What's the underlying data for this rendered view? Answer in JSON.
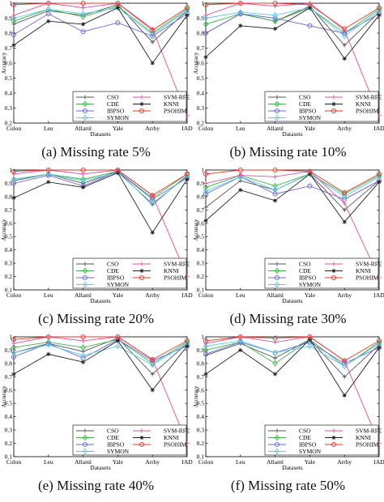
{
  "chart_data": [
    {
      "type": "line",
      "caption": "(a) Missing rate 5%",
      "categories": [
        "Colon",
        "Leu",
        "Allaml",
        "Yale",
        "Arrhy",
        "IAD"
      ],
      "xlabel": "Datasets",
      "ylabel": "Accuracy",
      "ylim": [
        0.2,
        1
      ],
      "yticks": [
        0.2,
        0.3,
        0.4,
        0.5,
        0.6,
        0.7,
        0.8,
        0.9,
        1
      ],
      "legend_position": "lower-left",
      "series": [
        {
          "name": "CSO",
          "color": "#555555",
          "marker": "plus",
          "values": [
            0.86,
            0.95,
            0.92,
            0.99,
            0.74,
            0.95
          ]
        },
        {
          "name": "CDE",
          "color": "#3cb44b",
          "marker": "diamond",
          "values": [
            0.88,
            0.96,
            0.91,
            0.98,
            0.8,
            0.96
          ]
        },
        {
          "name": "IBPSO",
          "color": "#6a6ad8",
          "marker": "circle",
          "values": [
            0.79,
            0.93,
            0.81,
            0.87,
            0.78,
            0.93
          ]
        },
        {
          "name": "SYMON",
          "color": "#5bc8e8",
          "marker": "diamond",
          "values": [
            0.9,
            0.96,
            0.93,
            0.97,
            0.79,
            0.95
          ]
        },
        {
          "name": "SVM-RFE",
          "color": "#e0509c",
          "marker": "plus",
          "values": [
            0.92,
            1.0,
            0.97,
            1.0,
            0.83,
            0.25
          ]
        },
        {
          "name": "KNNI",
          "color": "#222222",
          "marker": "star",
          "values": [
            0.72,
            0.88,
            0.86,
            0.97,
            0.6,
            0.92
          ]
        },
        {
          "name": "PSOHIM",
          "color": "#e03a2b",
          "marker": "circle",
          "values": [
            0.99,
            1.0,
            1.0,
            1.0,
            0.82,
            0.97
          ]
        }
      ]
    },
    {
      "type": "line",
      "caption": "(b) Missing rate 10%",
      "categories": [
        "Colon",
        "Leu",
        "Allaml",
        "Yale",
        "Arrhy",
        "IAD"
      ],
      "xlabel": "Datasets",
      "ylabel": "Accuracy",
      "ylim": [
        0.2,
        1
      ],
      "yticks": [
        0.2,
        0.3,
        0.4,
        0.5,
        0.6,
        0.7,
        0.8,
        0.9,
        1
      ],
      "legend_position": "lower-left",
      "series": [
        {
          "name": "CSO",
          "color": "#555555",
          "marker": "plus",
          "values": [
            0.8,
            0.93,
            0.88,
            0.98,
            0.72,
            0.94
          ]
        },
        {
          "name": "CDE",
          "color": "#3cb44b",
          "marker": "diamond",
          "values": [
            0.86,
            0.93,
            0.88,
            0.97,
            0.8,
            0.96
          ]
        },
        {
          "name": "IBPSO",
          "color": "#6a6ad8",
          "marker": "circle",
          "values": [
            0.8,
            0.93,
            0.9,
            0.85,
            0.8,
            0.93
          ]
        },
        {
          "name": "SYMON",
          "color": "#5bc8e8",
          "marker": "diamond",
          "values": [
            0.9,
            0.94,
            0.92,
            0.97,
            0.78,
            0.95
          ]
        },
        {
          "name": "SVM-RFE",
          "color": "#e0509c",
          "marker": "plus",
          "values": [
            0.92,
            1.0,
            0.98,
            1.0,
            0.82,
            0.25
          ]
        },
        {
          "name": "KNNI",
          "color": "#222222",
          "marker": "star",
          "values": [
            0.64,
            0.85,
            0.83,
            0.97,
            0.63,
            0.92
          ]
        },
        {
          "name": "PSOHIM",
          "color": "#e03a2b",
          "marker": "circle",
          "values": [
            0.99,
            1.0,
            1.0,
            0.99,
            0.83,
            0.97
          ]
        }
      ]
    },
    {
      "type": "line",
      "caption": "(c) Missing rate 20%",
      "categories": [
        "Colon",
        "Leu",
        "Allaml",
        "Yale",
        "Arrhy",
        "IAD"
      ],
      "xlabel": "Datasets",
      "ylabel": "Accuracy",
      "ylim": [
        0.1,
        1
      ],
      "yticks": [
        0.1,
        0.2,
        0.3,
        0.4,
        0.5,
        0.6,
        0.7,
        0.8,
        0.9,
        1
      ],
      "legend_position": "lower-left",
      "series": [
        {
          "name": "CSO",
          "color": "#555555",
          "marker": "plus",
          "values": [
            0.92,
            0.97,
            0.9,
            0.99,
            0.74,
            0.96
          ]
        },
        {
          "name": "CDE",
          "color": "#3cb44b",
          "marker": "diamond",
          "values": [
            0.93,
            0.97,
            0.93,
            0.99,
            0.79,
            0.97
          ]
        },
        {
          "name": "IBPSO",
          "color": "#6a6ad8",
          "marker": "circle",
          "values": [
            0.9,
            0.96,
            0.88,
            0.99,
            0.78,
            0.94
          ]
        },
        {
          "name": "SYMON",
          "color": "#5bc8e8",
          "marker": "diamond",
          "values": [
            0.93,
            0.97,
            0.92,
            0.98,
            0.75,
            0.95
          ]
        },
        {
          "name": "SVM-RFE",
          "color": "#e0509c",
          "marker": "plus",
          "values": [
            0.97,
            1.0,
            0.97,
            1.0,
            0.81,
            0.2
          ]
        },
        {
          "name": "KNNI",
          "color": "#222222",
          "marker": "star",
          "values": [
            0.79,
            0.91,
            0.87,
            0.98,
            0.53,
            0.93
          ]
        },
        {
          "name": "PSOHIM",
          "color": "#e03a2b",
          "marker": "circle",
          "values": [
            0.99,
            1.0,
            1.0,
            1.0,
            0.81,
            0.97
          ]
        }
      ]
    },
    {
      "type": "line",
      "caption": "(d) Missing rate 30%",
      "categories": [
        "Colon",
        "Leu",
        "Allaml",
        "Yale",
        "Arrhy",
        "IAD"
      ],
      "xlabel": "Datasets",
      "ylabel": "Accuracy",
      "ylim": [
        0.1,
        1
      ],
      "yticks": [
        0.1,
        0.2,
        0.3,
        0.4,
        0.5,
        0.6,
        0.7,
        0.8,
        0.9,
        1
      ],
      "legend_position": "lower-left",
      "series": [
        {
          "name": "CSO",
          "color": "#555555",
          "marker": "plus",
          "values": [
            0.72,
            0.92,
            0.85,
            0.97,
            0.7,
            0.92
          ]
        },
        {
          "name": "CDE",
          "color": "#3cb44b",
          "marker": "diamond",
          "values": [
            0.87,
            0.96,
            0.88,
            0.97,
            0.82,
            0.96
          ]
        },
        {
          "name": "IBPSO",
          "color": "#6a6ad8",
          "marker": "circle",
          "values": [
            0.82,
            0.95,
            0.82,
            0.88,
            0.78,
            0.92
          ]
        },
        {
          "name": "SYMON",
          "color": "#5bc8e8",
          "marker": "diamond",
          "values": [
            0.84,
            0.95,
            0.85,
            0.97,
            0.8,
            0.95
          ]
        },
        {
          "name": "SVM-RFE",
          "color": "#e0509c",
          "marker": "plus",
          "values": [
            0.9,
            0.96,
            0.95,
            0.99,
            0.75,
            0.19
          ]
        },
        {
          "name": "KNNI",
          "color": "#222222",
          "marker": "star",
          "values": [
            0.62,
            0.85,
            0.77,
            0.97,
            0.61,
            0.91
          ]
        },
        {
          "name": "PSOHIM",
          "color": "#e03a2b",
          "marker": "circle",
          "values": [
            0.97,
            1.0,
            1.0,
            0.99,
            0.83,
            0.97
          ]
        }
      ]
    },
    {
      "type": "line",
      "caption": "(e) Missing rate 40%",
      "categories": [
        "Colon",
        "Leu",
        "Allaml",
        "Yale",
        "Arrhy",
        "IAD"
      ],
      "xlabel": "Datasets",
      "ylabel": "Accuracy",
      "ylim": [
        0.1,
        1
      ],
      "yticks": [
        0.1,
        0.2,
        0.3,
        0.4,
        0.5,
        0.6,
        0.7,
        0.8,
        0.9,
        1
      ],
      "legend_position": "lower-left",
      "series": [
        {
          "name": "CSO",
          "color": "#555555",
          "marker": "plus",
          "values": [
            0.88,
            0.95,
            0.89,
            0.99,
            0.72,
            0.95
          ]
        },
        {
          "name": "CDE",
          "color": "#3cb44b",
          "marker": "diamond",
          "values": [
            0.92,
            0.96,
            0.92,
            0.98,
            0.8,
            0.96
          ]
        },
        {
          "name": "IBPSO",
          "color": "#6a6ad8",
          "marker": "circle",
          "values": [
            0.85,
            0.95,
            0.84,
            0.98,
            0.82,
            0.93
          ]
        },
        {
          "name": "SYMON",
          "color": "#5bc8e8",
          "marker": "diamond",
          "values": [
            0.88,
            0.94,
            0.86,
            0.93,
            0.79,
            0.95
          ]
        },
        {
          "name": "SVM-RFE",
          "color": "#e0509c",
          "marker": "plus",
          "values": [
            0.95,
            1.0,
            0.97,
            1.0,
            0.83,
            0.2
          ]
        },
        {
          "name": "KNNI",
          "color": "#222222",
          "marker": "star",
          "values": [
            0.72,
            0.87,
            0.81,
            0.97,
            0.6,
            0.93
          ]
        },
        {
          "name": "PSOHIM",
          "color": "#e03a2b",
          "marker": "circle",
          "values": [
            0.98,
            1.0,
            1.0,
            1.0,
            0.83,
            0.97
          ]
        }
      ]
    },
    {
      "type": "line",
      "caption": "(f) Missing rate 50%",
      "categories": [
        "Colon",
        "Leu",
        "Allaml",
        "Yale",
        "Arrhy",
        "IAD"
      ],
      "xlabel": "Datasets",
      "ylabel": "Accuracy",
      "ylim": [
        0.1,
        1
      ],
      "yticks": [
        0.1,
        0.2,
        0.3,
        0.4,
        0.5,
        0.6,
        0.7,
        0.8,
        0.9,
        1
      ],
      "legend_position": "lower-left",
      "series": [
        {
          "name": "CSO",
          "color": "#555555",
          "marker": "plus",
          "values": [
            0.86,
            0.95,
            0.84,
            0.98,
            0.7,
            0.94
          ]
        },
        {
          "name": "CDE",
          "color": "#3cb44b",
          "marker": "diamond",
          "values": [
            0.9,
            0.96,
            0.8,
            0.98,
            0.78,
            0.96
          ]
        },
        {
          "name": "IBPSO",
          "color": "#6a6ad8",
          "marker": "circle",
          "values": [
            0.87,
            0.96,
            0.88,
            0.96,
            0.8,
            0.92
          ]
        },
        {
          "name": "SYMON",
          "color": "#5bc8e8",
          "marker": "diamond",
          "values": [
            0.93,
            0.97,
            0.88,
            0.93,
            0.78,
            0.95
          ]
        },
        {
          "name": "SVM-RFE",
          "color": "#e0509c",
          "marker": "plus",
          "values": [
            0.95,
            1.0,
            0.96,
            1.0,
            0.82,
            0.2
          ]
        },
        {
          "name": "KNNI",
          "color": "#222222",
          "marker": "star",
          "values": [
            0.72,
            0.9,
            0.72,
            0.98,
            0.56,
            0.92
          ]
        },
        {
          "name": "PSOHIM",
          "color": "#e03a2b",
          "marker": "circle",
          "values": [
            0.97,
            1.0,
            0.99,
            1.0,
            0.82,
            0.97
          ]
        }
      ]
    }
  ]
}
